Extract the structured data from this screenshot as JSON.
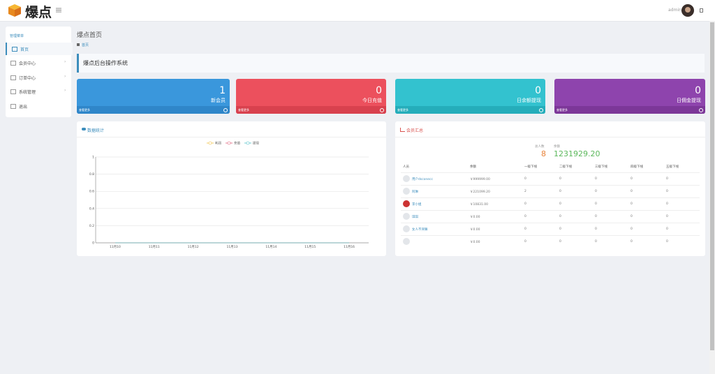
{
  "header": {
    "logo_text": "爆点",
    "user": "admin"
  },
  "sidebar": {
    "section": "管理菜单",
    "items": [
      "首页",
      "会员中心",
      "订单中心",
      "系统管理",
      "退出"
    ]
  },
  "page": {
    "title": "爆点首页",
    "breadcrumb": "首页",
    "banner": "爆点后台操作系统"
  },
  "stats": [
    {
      "value": 1,
      "label": "新会员",
      "more": "查看更多"
    },
    {
      "value": 0,
      "label": "今日充值",
      "more": "查看更多"
    },
    {
      "value": 0,
      "label": "日余额提现",
      "more": "查看更多"
    },
    {
      "value": 0,
      "label": "日佣金提现",
      "more": "查看更多"
    }
  ],
  "chart_data": {
    "type": "line",
    "title": "数据统计",
    "categories": [
      "11月10",
      "11月11",
      "11月12",
      "11月13",
      "11月14",
      "11月15",
      "11月16"
    ],
    "series": [
      {
        "name": "利润",
        "color": "#f0c040",
        "values": [
          0,
          0,
          0,
          0,
          0,
          0,
          0
        ]
      },
      {
        "name": "充值",
        "color": "#e0607a",
        "values": [
          0,
          0,
          0,
          0,
          0,
          0,
          0
        ]
      },
      {
        "name": "提现",
        "color": "#50c0c8",
        "values": [
          0,
          0,
          0,
          0,
          0,
          0,
          0
        ]
      }
    ],
    "ylim": [
      0,
      1
    ],
    "yticks": [
      0,
      0.2,
      0.4,
      0.6,
      0.8,
      1
    ],
    "grid": true
  },
  "members": {
    "title": "会员汇总",
    "total_label": "总人数",
    "total": 8,
    "balance_label": "余额",
    "balance": "1231929.20",
    "columns": [
      "人员",
      "余额",
      "一级下线",
      "二级下线",
      "三级下线",
      "四级下线",
      "五级下线"
    ],
    "rows": [
      [
        "用户dsconecc",
        "￥999999.00",
        0,
        0,
        0,
        0,
        0
      ],
      [
        "阿琳",
        "￥221099.20",
        2,
        0,
        0,
        0,
        0
      ],
      [
        "李小姐",
        "￥10831.00",
        0,
        0,
        0,
        0,
        0
      ],
      [
        "琪琪",
        "￥0.00",
        0,
        0,
        0,
        0,
        0
      ],
      [
        "女人不哭嘛",
        "￥0.00",
        0,
        0,
        0,
        0,
        0
      ],
      [
        null,
        "￥0.00",
        0,
        0,
        0,
        0,
        0
      ]
    ]
  }
}
